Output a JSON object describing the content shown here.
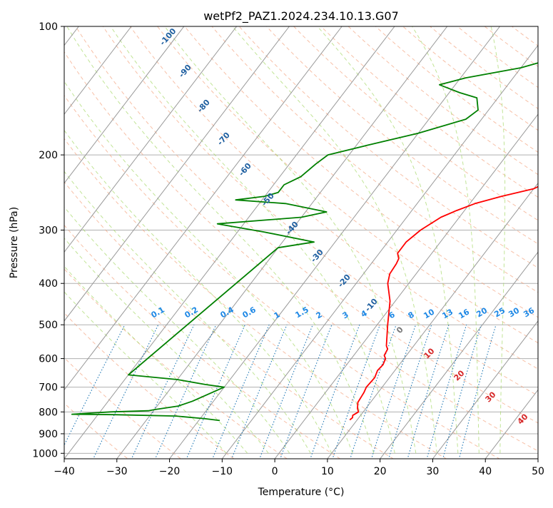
{
  "chart_data": {
    "type": "line",
    "title": "wetPf2_PAZ1.2024.234.10.13.G07",
    "xlabel": "Temperature (°C)",
    "ylabel": "Pressure (hPa)",
    "xlim": [
      -40,
      50
    ],
    "ylim": [
      1030,
      100
    ],
    "y_scale": "log",
    "grid": true,
    "x_ticks": [
      -40,
      -30,
      -20,
      -10,
      0,
      10,
      20,
      30,
      40,
      50
    ],
    "y_ticks": [
      1000,
      900,
      800,
      700,
      600,
      500,
      400,
      300,
      200,
      100
    ],
    "colors": {
      "temperature": "#ff0000",
      "dewpoint": "#008000",
      "isotherm": "#999999",
      "dry_adiabat": "#f4a582",
      "moist_adiabat": "#a6d96a",
      "mixing_ratio": "#1f77b4",
      "mixing_label": "#1e88e5",
      "moist_label": "#1f5fa0",
      "dry_label": "#d62728"
    },
    "series": [
      {
        "key": "temperature",
        "x": [
          8.6,
          8.8,
          8.5,
          9.1,
          8.4,
          7.6,
          7.3,
          7.0,
          7.2,
          6.7,
          6.9,
          6.5,
          5.8,
          5.5,
          4.8,
          2.0,
          -1.0,
          -4.0,
          -5.0,
          -5.2,
          -5.5,
          -6.5,
          -6.5,
          -5.5,
          -3.5,
          -1.5,
          1.0,
          5.0,
          10.0,
          12.0,
          16.0,
          18.0,
          19.0,
          20.0,
          21.0,
          22.0,
          23.5,
          24.0,
          25.5,
          26.0,
          27.0,
          28.0,
          29.5,
          30.0,
          31.0,
          32.0
        ],
        "p": [
          835,
          825,
          815,
          800,
          785,
          760,
          720,
          700,
          665,
          640,
          620,
          600,
          590,
          570,
          560,
          500,
          440,
          400,
          380,
          360,
          350,
          340,
          320,
          300,
          280,
          270,
          260,
          250,
          240,
          230,
          220,
          210,
          200,
          190,
          180,
          170,
          160,
          155,
          150,
          145,
          140,
          135,
          130,
          120,
          110,
          100
        ]
      },
      {
        "key": "dewpoint",
        "x": [
          -16.0,
          -19.0,
          -25.0,
          -37.0,
          -45.0,
          -38.0,
          -31.0,
          -30.0,
          -26.0,
          -24.0,
          -20.0,
          -24.0,
          -30.0,
          -40.0,
          -30.0,
          -24.0,
          -35.0,
          -45.0,
          -30.0,
          -26.0,
          -35.0,
          -45.0,
          -40.0,
          -38.0,
          -38.0,
          -36.0,
          -35.0,
          -34.0,
          -28.0,
          -20.0,
          -13.0,
          -12.0,
          -14.0,
          -18.0,
          -23.0,
          -19.0,
          -10.0,
          -6.0,
          -5.0,
          -1.0
        ],
        "p": [
          838,
          830,
          818,
          812,
          810,
          800,
          795,
          790,
          775,
          755,
          700,
          690,
          672,
          655,
          330,
          320,
          303,
          290,
          280,
          272,
          260,
          255,
          250,
          245,
          235,
          225,
          210,
          200,
          190,
          178,
          165,
          157,
          147,
          143,
          137,
          132,
          125,
          120,
          115,
          100
        ]
      }
    ],
    "mixing_ratio_lines": [
      0.1,
      0.2,
      0.4,
      0.6,
      1,
      1.5,
      2,
      3,
      4,
      6,
      8,
      10,
      13,
      16,
      20,
      25,
      30,
      36
    ],
    "mixing_ratio_labels": [
      "0.1",
      "0.2",
      "0.4",
      "0.6",
      "1",
      "1.5",
      "2",
      "3",
      "4",
      "6",
      "8",
      "10",
      "13",
      "16",
      "20",
      "25",
      "30",
      "36"
    ],
    "moist_adiabat_labels": [
      "-100",
      "-90",
      "-80",
      "-70",
      "-60",
      "-50",
      "-40",
      "-30",
      "-20",
      "-10",
      "0"
    ],
    "dry_adiabat_labels": [
      "10",
      "20",
      "30",
      "40"
    ]
  }
}
